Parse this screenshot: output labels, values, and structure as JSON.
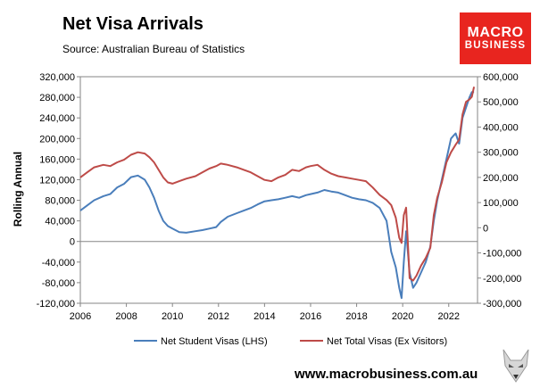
{
  "header": {
    "title": "Net Visa Arrivals",
    "source": "Source: Australian Bureau of Statistics"
  },
  "logo": {
    "line1": "MACRO",
    "line2": "BUSINESS"
  },
  "footer": {
    "url": "www.macrobusiness.com.au"
  },
  "colors": {
    "student": "#4a7ebb",
    "total": "#be4b48",
    "logo_bg": "#e8251f"
  },
  "chart_data": {
    "type": "line",
    "title": "Net Visa Arrivals",
    "ylabel": "Rolling Annual",
    "y_left": {
      "min": -120000,
      "max": 320000,
      "step": 40000,
      "ticks": [
        "320,000",
        "280,000",
        "240,000",
        "200,000",
        "160,000",
        "120,000",
        "80,000",
        "40,000",
        "0",
        "-40,000",
        "-80,000",
        "-120,000"
      ]
    },
    "y_right": {
      "min": -300000,
      "max": 600000,
      "step": 100000,
      "ticks": [
        "600,000",
        "500,000",
        "400,000",
        "300,000",
        "200,000",
        "100,000",
        "0",
        "-100,000",
        "-200,000",
        "-300,000"
      ]
    },
    "x_range": [
      2006,
      2023.25
    ],
    "x_ticks": [
      "2006",
      "2008",
      "2010",
      "2012",
      "2014",
      "2016",
      "2018",
      "2020",
      "2022"
    ],
    "legend_position": "bottom",
    "grid": false,
    "series": [
      {
        "name": "Net Student Visas (LHS)",
        "axis": "left",
        "points": [
          [
            2006.0,
            60000
          ],
          [
            2006.3,
            70000
          ],
          [
            2006.6,
            80000
          ],
          [
            2007.0,
            88000
          ],
          [
            2007.3,
            92000
          ],
          [
            2007.6,
            105000
          ],
          [
            2007.9,
            112000
          ],
          [
            2008.2,
            125000
          ],
          [
            2008.5,
            128000
          ],
          [
            2008.8,
            120000
          ],
          [
            2009.0,
            105000
          ],
          [
            2009.2,
            85000
          ],
          [
            2009.4,
            60000
          ],
          [
            2009.6,
            40000
          ],
          [
            2009.8,
            30000
          ],
          [
            2010.0,
            25000
          ],
          [
            2010.3,
            18000
          ],
          [
            2010.6,
            17000
          ],
          [
            2011.0,
            20000
          ],
          [
            2011.3,
            22000
          ],
          [
            2011.6,
            25000
          ],
          [
            2011.9,
            28000
          ],
          [
            2012.1,
            38000
          ],
          [
            2012.4,
            48000
          ],
          [
            2012.8,
            55000
          ],
          [
            2013.1,
            60000
          ],
          [
            2013.4,
            65000
          ],
          [
            2013.7,
            72000
          ],
          [
            2014.0,
            78000
          ],
          [
            2014.3,
            80000
          ],
          [
            2014.6,
            82000
          ],
          [
            2014.9,
            85000
          ],
          [
            2015.2,
            88000
          ],
          [
            2015.5,
            85000
          ],
          [
            2015.8,
            90000
          ],
          [
            2016.0,
            92000
          ],
          [
            2016.3,
            95000
          ],
          [
            2016.6,
            100000
          ],
          [
            2016.9,
            97000
          ],
          [
            2017.2,
            95000
          ],
          [
            2017.5,
            90000
          ],
          [
            2017.8,
            85000
          ],
          [
            2018.1,
            82000
          ],
          [
            2018.4,
            80000
          ],
          [
            2018.7,
            75000
          ],
          [
            2019.0,
            65000
          ],
          [
            2019.3,
            40000
          ],
          [
            2019.5,
            -20000
          ],
          [
            2019.7,
            -50000
          ],
          [
            2019.85,
            -90000
          ],
          [
            2019.95,
            -110000
          ],
          [
            2020.05,
            -40000
          ],
          [
            2020.15,
            20000
          ],
          [
            2020.3,
            -60000
          ],
          [
            2020.45,
            -90000
          ],
          [
            2020.6,
            -80000
          ],
          [
            2020.8,
            -60000
          ],
          [
            2021.0,
            -40000
          ],
          [
            2021.2,
            -10000
          ],
          [
            2021.35,
            40000
          ],
          [
            2021.5,
            80000
          ],
          [
            2021.7,
            120000
          ],
          [
            2021.9,
            160000
          ],
          [
            2022.1,
            200000
          ],
          [
            2022.3,
            210000
          ],
          [
            2022.45,
            190000
          ],
          [
            2022.6,
            240000
          ],
          [
            2022.75,
            260000
          ],
          [
            2022.9,
            280000
          ],
          [
            2023.0,
            290000
          ],
          [
            2023.1,
            290000
          ]
        ]
      },
      {
        "name": "Net Total Visas (Ex Visitors)",
        "axis": "right",
        "points": [
          [
            2006.0,
            200000
          ],
          [
            2006.3,
            220000
          ],
          [
            2006.6,
            240000
          ],
          [
            2007.0,
            250000
          ],
          [
            2007.3,
            245000
          ],
          [
            2007.6,
            260000
          ],
          [
            2007.9,
            270000
          ],
          [
            2008.2,
            290000
          ],
          [
            2008.5,
            300000
          ],
          [
            2008.8,
            295000
          ],
          [
            2009.0,
            280000
          ],
          [
            2009.2,
            260000
          ],
          [
            2009.4,
            230000
          ],
          [
            2009.6,
            200000
          ],
          [
            2009.8,
            180000
          ],
          [
            2010.0,
            175000
          ],
          [
            2010.3,
            185000
          ],
          [
            2010.6,
            195000
          ],
          [
            2011.0,
            205000
          ],
          [
            2011.3,
            220000
          ],
          [
            2011.6,
            235000
          ],
          [
            2011.9,
            245000
          ],
          [
            2012.1,
            255000
          ],
          [
            2012.4,
            250000
          ],
          [
            2012.8,
            240000
          ],
          [
            2013.1,
            230000
          ],
          [
            2013.4,
            220000
          ],
          [
            2013.7,
            205000
          ],
          [
            2014.0,
            190000
          ],
          [
            2014.3,
            185000
          ],
          [
            2014.6,
            200000
          ],
          [
            2014.9,
            210000
          ],
          [
            2015.2,
            230000
          ],
          [
            2015.5,
            225000
          ],
          [
            2015.8,
            240000
          ],
          [
            2016.0,
            245000
          ],
          [
            2016.3,
            250000
          ],
          [
            2016.6,
            230000
          ],
          [
            2016.9,
            215000
          ],
          [
            2017.2,
            205000
          ],
          [
            2017.5,
            200000
          ],
          [
            2017.8,
            195000
          ],
          [
            2018.1,
            190000
          ],
          [
            2018.4,
            185000
          ],
          [
            2018.7,
            160000
          ],
          [
            2019.0,
            130000
          ],
          [
            2019.3,
            110000
          ],
          [
            2019.5,
            90000
          ],
          [
            2019.7,
            40000
          ],
          [
            2019.85,
            -40000
          ],
          [
            2019.95,
            -60000
          ],
          [
            2020.05,
            50000
          ],
          [
            2020.15,
            80000
          ],
          [
            2020.3,
            -200000
          ],
          [
            2020.45,
            -210000
          ],
          [
            2020.6,
            -190000
          ],
          [
            2020.8,
            -150000
          ],
          [
            2021.0,
            -120000
          ],
          [
            2021.2,
            -80000
          ],
          [
            2021.35,
            50000
          ],
          [
            2021.5,
            120000
          ],
          [
            2021.7,
            180000
          ],
          [
            2021.9,
            260000
          ],
          [
            2022.1,
            300000
          ],
          [
            2022.3,
            330000
          ],
          [
            2022.45,
            350000
          ],
          [
            2022.6,
            450000
          ],
          [
            2022.75,
            500000
          ],
          [
            2022.9,
            510000
          ],
          [
            2023.0,
            520000
          ],
          [
            2023.1,
            560000
          ]
        ]
      }
    ]
  }
}
